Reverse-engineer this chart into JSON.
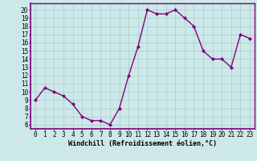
{
  "x": [
    0,
    1,
    2,
    3,
    4,
    5,
    6,
    7,
    8,
    9,
    10,
    11,
    12,
    13,
    14,
    15,
    16,
    17,
    18,
    19,
    20,
    21,
    22,
    23
  ],
  "y": [
    9,
    10.5,
    10,
    9.5,
    8.5,
    7,
    6.5,
    6.5,
    6,
    8,
    12,
    15.5,
    20,
    19.5,
    19.5,
    20,
    19,
    18,
    15,
    14,
    14,
    13,
    17,
    16.5
  ],
  "line_color": "#800080",
  "marker": "D",
  "marker_size": 2.0,
  "background_color": "#cce8e8",
  "grid_color": "#aacccc",
  "xlabel": "Windchill (Refroidissement éolien,°C)",
  "xlabel_fontsize": 6.0,
  "ylabel_ticks": [
    6,
    7,
    8,
    9,
    10,
    11,
    12,
    13,
    14,
    15,
    16,
    17,
    18,
    19,
    20
  ],
  "xticks": [
    0,
    1,
    2,
    3,
    4,
    5,
    6,
    7,
    8,
    9,
    10,
    11,
    12,
    13,
    14,
    15,
    16,
    17,
    18,
    19,
    20,
    21,
    22,
    23
  ],
  "ylim": [
    5.5,
    20.8
  ],
  "xlim": [
    -0.5,
    23.5
  ],
  "tick_fontsize": 5.5,
  "line_width": 1.0,
  "spine_color": "#800080"
}
